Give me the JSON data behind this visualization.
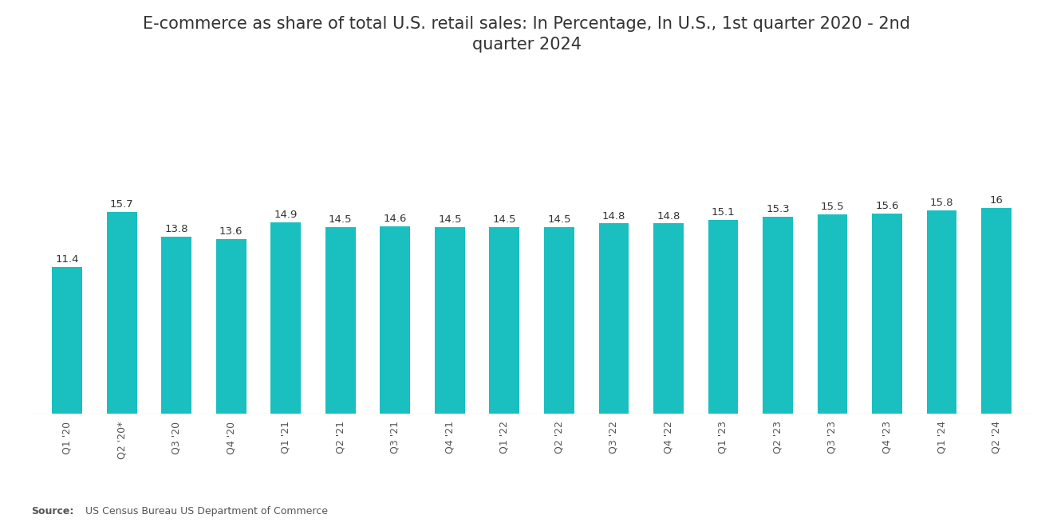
{
  "title_line1": "E-commerce as share of total U.S. retail sales: In Percentage, In U.S., 1st quarter 2020 - 2nd",
  "title_line2": "quarter 2024",
  "categories": [
    "Q1 '20",
    "Q2 '20*",
    "Q3 '20",
    "Q4 '20",
    "Q1 '21",
    "Q2 '21",
    "Q3 '21",
    "Q4 '21",
    "Q1 '22",
    "Q2 '22",
    "Q3 '22",
    "Q4 '22",
    "Q1 '23",
    "Q2 '23",
    "Q3 '23",
    "Q4 '23",
    "Q1 '24",
    "Q2 '24"
  ],
  "values": [
    11.4,
    15.7,
    13.8,
    13.6,
    14.9,
    14.5,
    14.6,
    14.5,
    14.5,
    14.5,
    14.8,
    14.8,
    15.1,
    15.3,
    15.5,
    15.6,
    15.8,
    16.0
  ],
  "bar_color": "#1ABFBF",
  "background_color": "#ffffff",
  "title_fontsize": 15,
  "label_fontsize": 9.5,
  "tick_fontsize": 9,
  "source_bold": "Source:",
  "source_normal": "  US Census Bureau US Department of Commerce",
  "ylim": [
    0,
    19
  ],
  "value_labels": [
    "11.4",
    "15.7",
    "13.8",
    "13.6",
    "14.9",
    "14.5",
    "14.6",
    "14.5",
    "14.5",
    "14.5",
    "14.8",
    "14.8",
    "15.1",
    "15.3",
    "15.5",
    "15.6",
    "15.8",
    "16"
  ],
  "bar_width": 0.55
}
